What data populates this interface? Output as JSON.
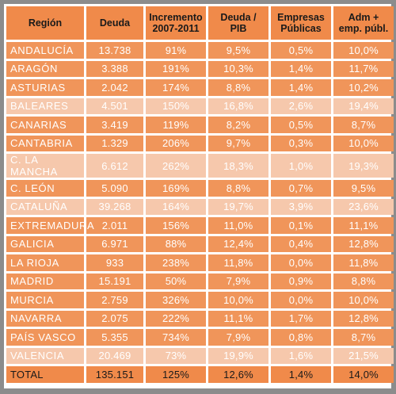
{
  "table": {
    "headers": [
      "Región",
      "Deuda",
      "Incremento 2007-2011",
      "Deuda / PIB",
      "Empresas Públicas",
      "Adm + emp. públ."
    ],
    "rows": [
      {
        "region": "ANDALUCÍA",
        "deuda": "13.738",
        "incremento": "91%",
        "deuda_pib": "9,5%",
        "empresas": "0,5%",
        "adm": "10,0%",
        "highlight": false
      },
      {
        "region": "ARAGÓN",
        "deuda": "3.388",
        "incremento": "191%",
        "deuda_pib": "10,3%",
        "empresas": "1,4%",
        "adm": "11,7%",
        "highlight": false
      },
      {
        "region": "ASTURIAS",
        "deuda": "2.042",
        "incremento": "174%",
        "deuda_pib": "8,8%",
        "empresas": "1,4%",
        "adm": "10,2%",
        "highlight": false
      },
      {
        "region": "BALEARES",
        "deuda": "4.501",
        "incremento": "150%",
        "deuda_pib": "16,8%",
        "empresas": "2,6%",
        "adm": "19,4%",
        "highlight": true
      },
      {
        "region": "CANARIAS",
        "deuda": "3.419",
        "incremento": "119%",
        "deuda_pib": "8,2%",
        "empresas": "0,5%",
        "adm": "8,7%",
        "highlight": false
      },
      {
        "region": "CANTABRIA",
        "deuda": "1.329",
        "incremento": "206%",
        "deuda_pib": "9,7%",
        "empresas": "0,3%",
        "adm": "10,0%",
        "highlight": false
      },
      {
        "region": "C. LA MANCHA",
        "deuda": "6.612",
        "incremento": "262%",
        "deuda_pib": "18,3%",
        "empresas": "1,0%",
        "adm": "19,3%",
        "highlight": true
      },
      {
        "region": "C. LEÓN",
        "deuda": "5.090",
        "incremento": "169%",
        "deuda_pib": "8,8%",
        "empresas": "0,7%",
        "adm": "9,5%",
        "highlight": false
      },
      {
        "region": "CATALUÑA",
        "deuda": "39.268",
        "incremento": "164%",
        "deuda_pib": "19,7%",
        "empresas": "3,9%",
        "adm": "23,6%",
        "highlight": true
      },
      {
        "region": "EXTREMADURA",
        "deuda": "2.011",
        "incremento": "156%",
        "deuda_pib": "11,0%",
        "empresas": "0,1%",
        "adm": "11,1%",
        "highlight": false
      },
      {
        "region": "GALICIA",
        "deuda": "6.971",
        "incremento": "88%",
        "deuda_pib": "12,4%",
        "empresas": "0,4%",
        "adm": "12,8%",
        "highlight": false
      },
      {
        "region": "LA RIOJA",
        "deuda": "933",
        "incremento": "238%",
        "deuda_pib": "11,8%",
        "empresas": "0,0%",
        "adm": "11,8%",
        "highlight": false
      },
      {
        "region": "MADRID",
        "deuda": "15.191",
        "incremento": "50%",
        "deuda_pib": "7,9%",
        "empresas": "0,9%",
        "adm": "8,8%",
        "highlight": false
      },
      {
        "region": "MURCIA",
        "deuda": "2.759",
        "incremento": "326%",
        "deuda_pib": "10,0%",
        "empresas": "0,0%",
        "adm": "10,0%",
        "highlight": false
      },
      {
        "region": "NAVARRA",
        "deuda": "2.075",
        "incremento": "222%",
        "deuda_pib": "11,1%",
        "empresas": "1,7%",
        "adm": "12,8%",
        "highlight": false
      },
      {
        "region": "PAÍS VASCO",
        "deuda": "5.355",
        "incremento": "734%",
        "deuda_pib": "7,9%",
        "empresas": "0,8%",
        "adm": "8,7%",
        "highlight": false
      },
      {
        "region": "VALENCIA",
        "deuda": "20.469",
        "incremento": "73%",
        "deuda_pib": "19,9%",
        "empresas": "1,6%",
        "adm": "21,5%",
        "highlight": true
      }
    ],
    "total": {
      "region": "TOTAL",
      "deuda": "135.151",
      "incremento": "125%",
      "deuda_pib": "12,6%",
      "empresas": "1,4%",
      "adm": "14,0%"
    }
  },
  "colors": {
    "frame": "#8c8c8c",
    "header_fill": "#f08a4a",
    "row_fill": "#f0955a",
    "highlight_fill": "#f6c8ac"
  }
}
